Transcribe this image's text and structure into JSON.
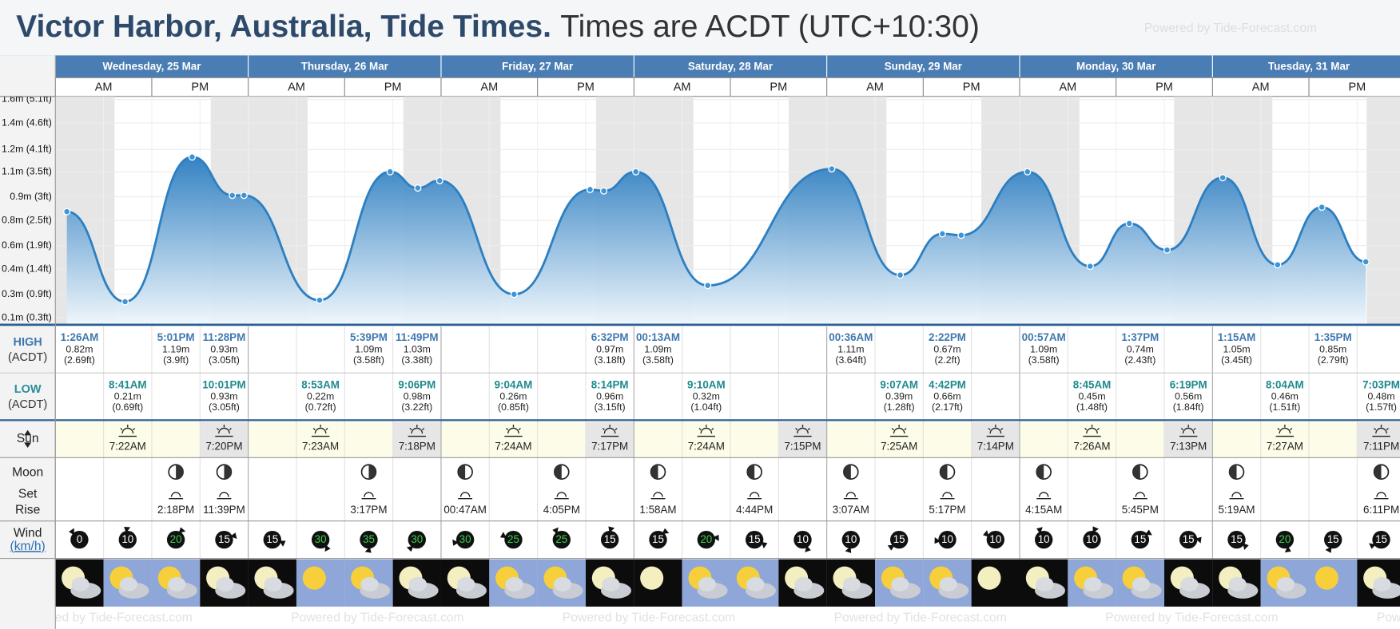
{
  "header": {
    "title": "Victor Harbor, Australia, Tide Times.",
    "subtitle": "Times are ACDT (UTC+10:30)",
    "powered": "Powered by Tide-Forecast.com"
  },
  "days": [
    "Wednesday, 25 Mar",
    "Thursday, 26 Mar",
    "Friday, 27 Mar",
    "Saturday, 28 Mar",
    "Sunday, 29 Mar",
    "Monday, 30 Mar",
    "Tuesday, 31 Mar"
  ],
  "am": "AM",
  "pm": "PM",
  "chart_data": {
    "type": "area",
    "color": "#2c7fc1",
    "grid": true,
    "xlim": [
      0,
      167.3
    ],
    "ylim": [
      0.06,
      1.6
    ],
    "yticks": [
      {
        "value": 0.1,
        "label": "0.1m (0.3ft)"
      },
      {
        "value": 0.26,
        "label": "0.3m (0.9ft)"
      },
      {
        "value": 0.43,
        "label": "0.4m (1.4ft)"
      },
      {
        "value": 0.59,
        "label": "0.6m (1.9ft)"
      },
      {
        "value": 0.76,
        "label": "0.8m (2.5ft)"
      },
      {
        "value": 0.92,
        "label": "0.9m (3ft)"
      },
      {
        "value": 1.09,
        "label": "1.1m (3.5ft)"
      },
      {
        "value": 1.24,
        "label": "1.2m (4.1ft)"
      },
      {
        "value": 1.42,
        "label": "1.4m (4.6ft)"
      },
      {
        "value": 1.58,
        "label": "1.6m (5.1ft)"
      }
    ],
    "x": [
      1.43,
      8.68,
      17.02,
      22.02,
      23.47,
      32.88,
      41.65,
      45.1,
      47.82,
      57.07,
      66.53,
      68.23,
      72.22,
      81.17,
      96.6,
      105.12,
      110.37,
      112.7,
      120.95,
      128.75,
      133.62,
      138.32,
      145.25,
      152.07,
      157.58,
      163.05
    ],
    "values": [
      0.82,
      0.21,
      1.19,
      0.93,
      0.93,
      0.22,
      1.09,
      0.98,
      1.03,
      0.26,
      0.97,
      0.96,
      1.09,
      0.32,
      1.11,
      0.39,
      0.67,
      0.66,
      1.09,
      0.45,
      0.74,
      0.56,
      1.05,
      0.46,
      0.85,
      0.48
    ]
  },
  "tides": {
    "high_label": "HIGH",
    "low_label": "LOW",
    "tz": "(ACDT)",
    "entries": [
      {
        "type": "high",
        "time": "1:26AM",
        "m": "0.82m",
        "ft": "(2.69ft)"
      },
      {
        "type": "low",
        "time": "8:41AM",
        "m": "0.21m",
        "ft": "(0.69ft)"
      },
      {
        "type": "high",
        "time": "5:01PM",
        "m": "1.19m",
        "ft": "(3.9ft)"
      },
      {
        "type": "low",
        "time": "10:01PM",
        "m": "0.93m",
        "ft": "(3.05ft)"
      },
      {
        "type": "high",
        "time": "11:28PM",
        "m": "0.93m",
        "ft": "(3.05ft)"
      },
      {
        "type": "low",
        "time": "8:53AM",
        "m": "0.22m",
        "ft": "(0.72ft)"
      },
      {
        "type": "high",
        "time": "5:39PM",
        "m": "1.09m",
        "ft": "(3.58ft)"
      },
      {
        "type": "low",
        "time": "9:06PM",
        "m": "0.98m",
        "ft": "(3.22ft)"
      },
      {
        "type": "high",
        "time": "11:49PM",
        "m": "1.03m",
        "ft": "(3.38ft)"
      },
      {
        "type": "low",
        "time": "9:04AM",
        "m": "0.26m",
        "ft": "(0.85ft)"
      },
      {
        "type": "high",
        "time": "6:32PM",
        "m": "0.97m",
        "ft": "(3.18ft)"
      },
      {
        "type": "low",
        "time": "8:14PM",
        "m": "0.96m",
        "ft": "(3.15ft)"
      },
      {
        "type": "high",
        "time": "00:13AM",
        "m": "1.09m",
        "ft": "(3.58ft)"
      },
      {
        "type": "low",
        "time": "9:10AM",
        "m": "0.32m",
        "ft": "(1.04ft)"
      },
      {
        "type": "high",
        "time": "00:36AM",
        "m": "1.11m",
        "ft": "(3.64ft)"
      },
      {
        "type": "low",
        "time": "9:07AM",
        "m": "0.39m",
        "ft": "(1.28ft)"
      },
      {
        "type": "high",
        "time": "2:22PM",
        "m": "0.67m",
        "ft": "(2.2ft)"
      },
      {
        "type": "low",
        "time": "4:42PM",
        "m": "0.66m",
        "ft": "(2.17ft)"
      },
      {
        "type": "high",
        "time": "00:57AM",
        "m": "1.09m",
        "ft": "(3.58ft)"
      },
      {
        "type": "low",
        "time": "8:45AM",
        "m": "0.45m",
        "ft": "(1.48ft)"
      },
      {
        "type": "high",
        "time": "1:37PM",
        "m": "0.74m",
        "ft": "(2.43ft)"
      },
      {
        "type": "low",
        "time": "6:19PM",
        "m": "0.56m",
        "ft": "(1.84ft)"
      },
      {
        "type": "high",
        "time": "1:15AM",
        "m": "1.05m",
        "ft": "(3.45ft)"
      },
      {
        "type": "low",
        "time": "8:04AM",
        "m": "0.46m",
        "ft": "(1.51ft)"
      },
      {
        "type": "high",
        "time": "1:35PM",
        "m": "0.85m",
        "ft": "(2.79ft)"
      },
      {
        "type": "low",
        "time": "7:03PM",
        "m": "0.48m",
        "ft": "(1.57ft)"
      }
    ]
  },
  "sun": {
    "label": "Sun",
    "days": [
      {
        "rise": "7:22AM",
        "set": "7:20PM"
      },
      {
        "rise": "7:23AM",
        "set": "7:18PM"
      },
      {
        "rise": "7:24AM",
        "set": "7:17PM"
      },
      {
        "rise": "7:24AM",
        "set": "7:15PM"
      },
      {
        "rise": "7:25AM",
        "set": "7:14PM"
      },
      {
        "rise": "7:26AM",
        "set": "7:13PM"
      },
      {
        "rise": "7:27AM",
        "set": "7:11PM"
      }
    ]
  },
  "moon": {
    "label": "Moon",
    "set_label": "Set",
    "rise_label": "Rise",
    "days": [
      [
        "2:18PM",
        "11:39PM"
      ],
      [
        "3:17PM"
      ],
      [
        "00:47AM",
        "4:05PM"
      ],
      [
        "1:58AM",
        "4:44PM"
      ],
      [
        "3:07AM",
        "5:17PM"
      ],
      [
        "4:15AM",
        "5:45PM"
      ],
      [
        "5:19AM",
        "6:11PM"
      ]
    ]
  },
  "wind": {
    "label": "Wind",
    "unit": "(km/h)",
    "speeds": [
      0,
      10,
      20,
      15,
      15,
      30,
      35,
      30,
      30,
      25,
      25,
      15,
      15,
      20,
      15,
      10,
      10,
      15,
      10,
      10,
      10,
      10,
      15,
      15,
      15,
      20,
      15,
      15
    ]
  }
}
